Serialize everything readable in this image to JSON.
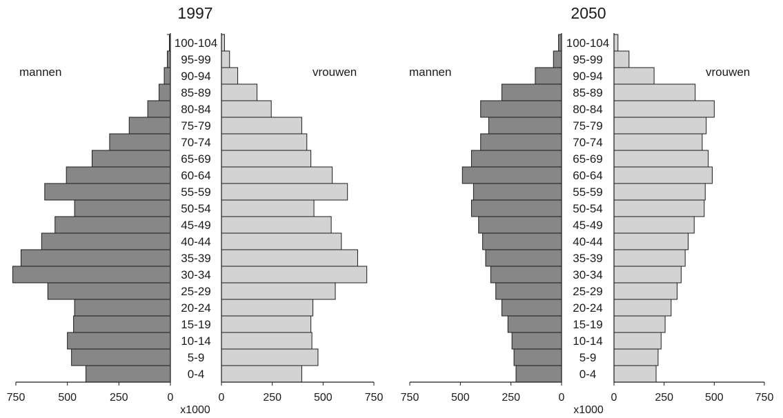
{
  "colors": {
    "male": "#878787",
    "female": "#d3d3d3",
    "stroke": "#1a1a1a"
  },
  "chart_data": [
    {
      "type": "bar",
      "title": "1997",
      "left_label": "mannen",
      "right_label": "vrouwen",
      "unit_label": "x1000",
      "categories": [
        "0-4",
        "5-9",
        "10-14",
        "15-19",
        "20-24",
        "25-29",
        "30-34",
        "35-39",
        "40-44",
        "45-49",
        "50-54",
        "55-59",
        "60-64",
        "65-69",
        "70-74",
        "75-79",
        "80-84",
        "85-89",
        "90-94",
        "95-99",
        "100-104"
      ],
      "series": [
        {
          "name": "mannen",
          "values": [
            410,
            480,
            500,
            470,
            465,
            595,
            765,
            725,
            625,
            560,
            465,
            610,
            505,
            380,
            295,
            200,
            110,
            55,
            30,
            15,
            5
          ]
        },
        {
          "name": "vrouwen",
          "values": [
            395,
            475,
            445,
            440,
            450,
            560,
            715,
            670,
            590,
            540,
            455,
            620,
            545,
            440,
            420,
            395,
            245,
            175,
            80,
            40,
            15
          ]
        }
      ],
      "xlim": [
        0,
        750
      ],
      "xticks": [
        "750",
        "500",
        "250",
        "0"
      ]
    },
    {
      "type": "bar",
      "title": "2050",
      "left_label": "mannen",
      "right_label": "vrouwen",
      "unit_label": "x1000",
      "categories": [
        "0-4",
        "5-9",
        "10-14",
        "15-19",
        "20-24",
        "25-29",
        "30-34",
        "35-39",
        "40-44",
        "45-49",
        "50-54",
        "55-59",
        "60-64",
        "65-69",
        "70-74",
        "75-79",
        "80-84",
        "85-89",
        "90-94",
        "95-99",
        "100-104"
      ],
      "series": [
        {
          "name": "mannen",
          "values": [
            225,
            235,
            245,
            265,
            295,
            325,
            350,
            375,
            390,
            410,
            445,
            435,
            490,
            445,
            400,
            360,
            400,
            295,
            130,
            40,
            15
          ]
        },
        {
          "name": "vrouwen",
          "values": [
            210,
            220,
            235,
            255,
            285,
            315,
            335,
            355,
            370,
            400,
            450,
            455,
            490,
            470,
            440,
            460,
            500,
            405,
            200,
            75,
            20
          ]
        }
      ],
      "xlim": [
        0,
        750
      ],
      "xticks": [
        "750",
        "500",
        "250",
        "0"
      ]
    }
  ]
}
